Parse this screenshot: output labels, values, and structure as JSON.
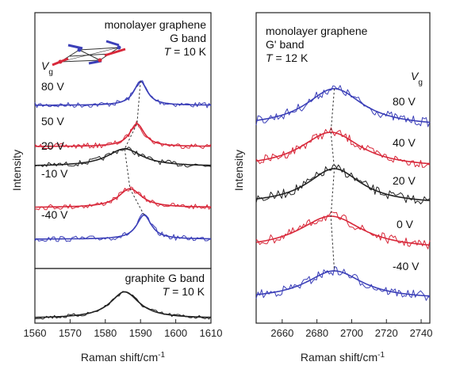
{
  "chart_data": [
    {
      "type": "line",
      "panel": "left",
      "title_lines": [
        "monolayer graphene",
        "G band"
      ],
      "temperature_label": "T = 10 K",
      "gate_label": "V",
      "gate_sub": "g",
      "xlabel": "Raman shift/cm",
      "xlabel_sup": "-1",
      "ylabel": "Intensity",
      "xlim": [
        1560,
        1610
      ],
      "xticks": [
        "1560",
        "1570",
        "1580",
        "1590",
        "1600",
        "1610"
      ],
      "series": [
        {
          "name": "80 V",
          "color": "#3b3fb8",
          "peak": 1590.0,
          "fwhm": 4.5,
          "amp": 0.9
        },
        {
          "name": "50 V",
          "color": "#d8283a",
          "peak": 1589.0,
          "fwhm": 5.0,
          "amp": 0.85
        },
        {
          "name": "20 V",
          "color": "#222222",
          "peak": 1585.5,
          "fwhm": 12.0,
          "amp": 0.65
        },
        {
          "name": "-10 V",
          "color": "#d8283a",
          "peak": 1587.0,
          "fwhm": 8.0,
          "amp": 0.7
        },
        {
          "name": "-40 V",
          "color": "#3b3fb8",
          "peak": 1591.0,
          "fwhm": 5.0,
          "amp": 0.9
        }
      ],
      "dashed_guide_x": [
        1590.0,
        1589.0,
        1585.5,
        1587.0,
        1591.0
      ]
    },
    {
      "type": "line",
      "panel": "left-bottom",
      "title": "graphite G band",
      "temperature_label": "T = 10 K",
      "xlim": [
        1560,
        1610
      ],
      "series": [
        {
          "name": "graphite",
          "color": "#222222",
          "peak": 1585.5,
          "fwhm": 10.0,
          "amp": 0.8
        }
      ]
    },
    {
      "type": "line",
      "panel": "right",
      "title_lines": [
        "monolayer graphene",
        "G' band"
      ],
      "temperature_label": "T = 12 K",
      "gate_label": "V",
      "gate_sub": "g",
      "xlabel": "Raman shift/cm",
      "xlabel_sup": "-1",
      "ylabel": "Intensity",
      "xlim": [
        2645,
        2745
      ],
      "xticks": [
        "2660",
        "2680",
        "2700",
        "2720",
        "2740"
      ],
      "series": [
        {
          "name": "80 V",
          "color": "#3b3fb8",
          "peak": 2690.0,
          "fwhm": 40.0,
          "amp": 0.8
        },
        {
          "name": "40 V",
          "color": "#d8283a",
          "peak": 2688.0,
          "fwhm": 42.0,
          "amp": 0.75
        },
        {
          "name": "20 V",
          "color": "#222222",
          "peak": 2690.0,
          "fwhm": 38.0,
          "amp": 0.75
        },
        {
          "name": "0 V",
          "color": "#d8283a",
          "peak": 2688.0,
          "fwhm": 45.0,
          "amp": 0.7
        },
        {
          "name": "-40 V",
          "color": "#3b3fb8",
          "peak": 2690.0,
          "fwhm": 40.0,
          "amp": 0.6
        }
      ],
      "dashed_guide_x": [
        2690.0,
        2688.0,
        2690.0,
        2688.0,
        2690.0
      ]
    }
  ],
  "colors": {
    "blue": "#3b3fb8",
    "red": "#d8283a",
    "black": "#222222"
  }
}
